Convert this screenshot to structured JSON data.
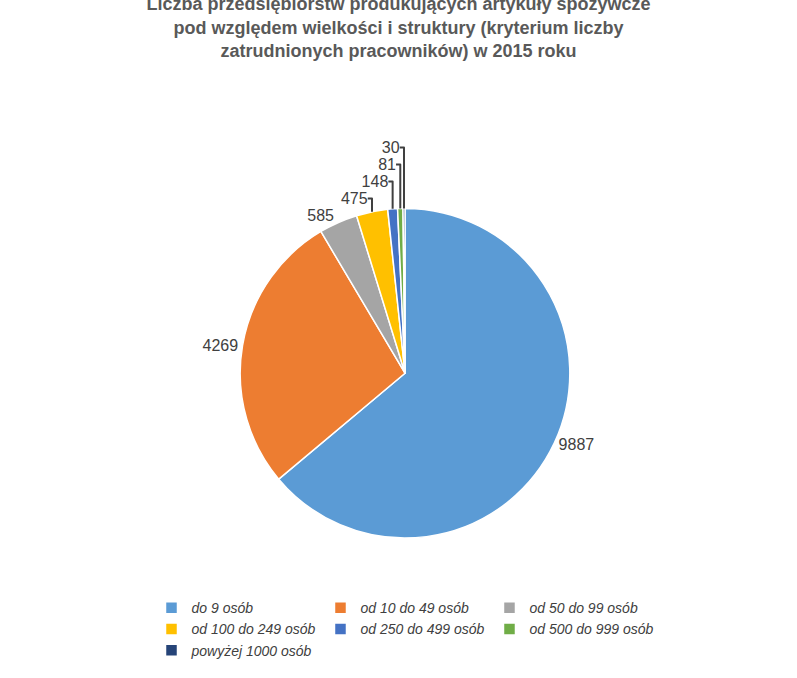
{
  "chart_data": {
    "type": "pie",
    "title": "Liczba przedsiębiorstw produkujących artykuły spożywcze\npod względem wielkości i struktury (kryterium liczby\nzatrudnionych pracowników) w 2015 roku",
    "categories": [
      "do 9 osób",
      "od 10 do 49 osób",
      "od 50 do 99 osób",
      "od 100 do 249 osób",
      "od 250 do 499 osób",
      "od 500 do 999 osób",
      "powyżej 1000 osób"
    ],
    "values": [
      9887,
      4269,
      585,
      475,
      148,
      81,
      30
    ],
    "colors": [
      "#5b9bd5",
      "#ed7d31",
      "#a5a5a5",
      "#ffc000",
      "#4472c4",
      "#70ad47",
      "#264478"
    ],
    "data_labels": true,
    "legend": "bottom"
  }
}
